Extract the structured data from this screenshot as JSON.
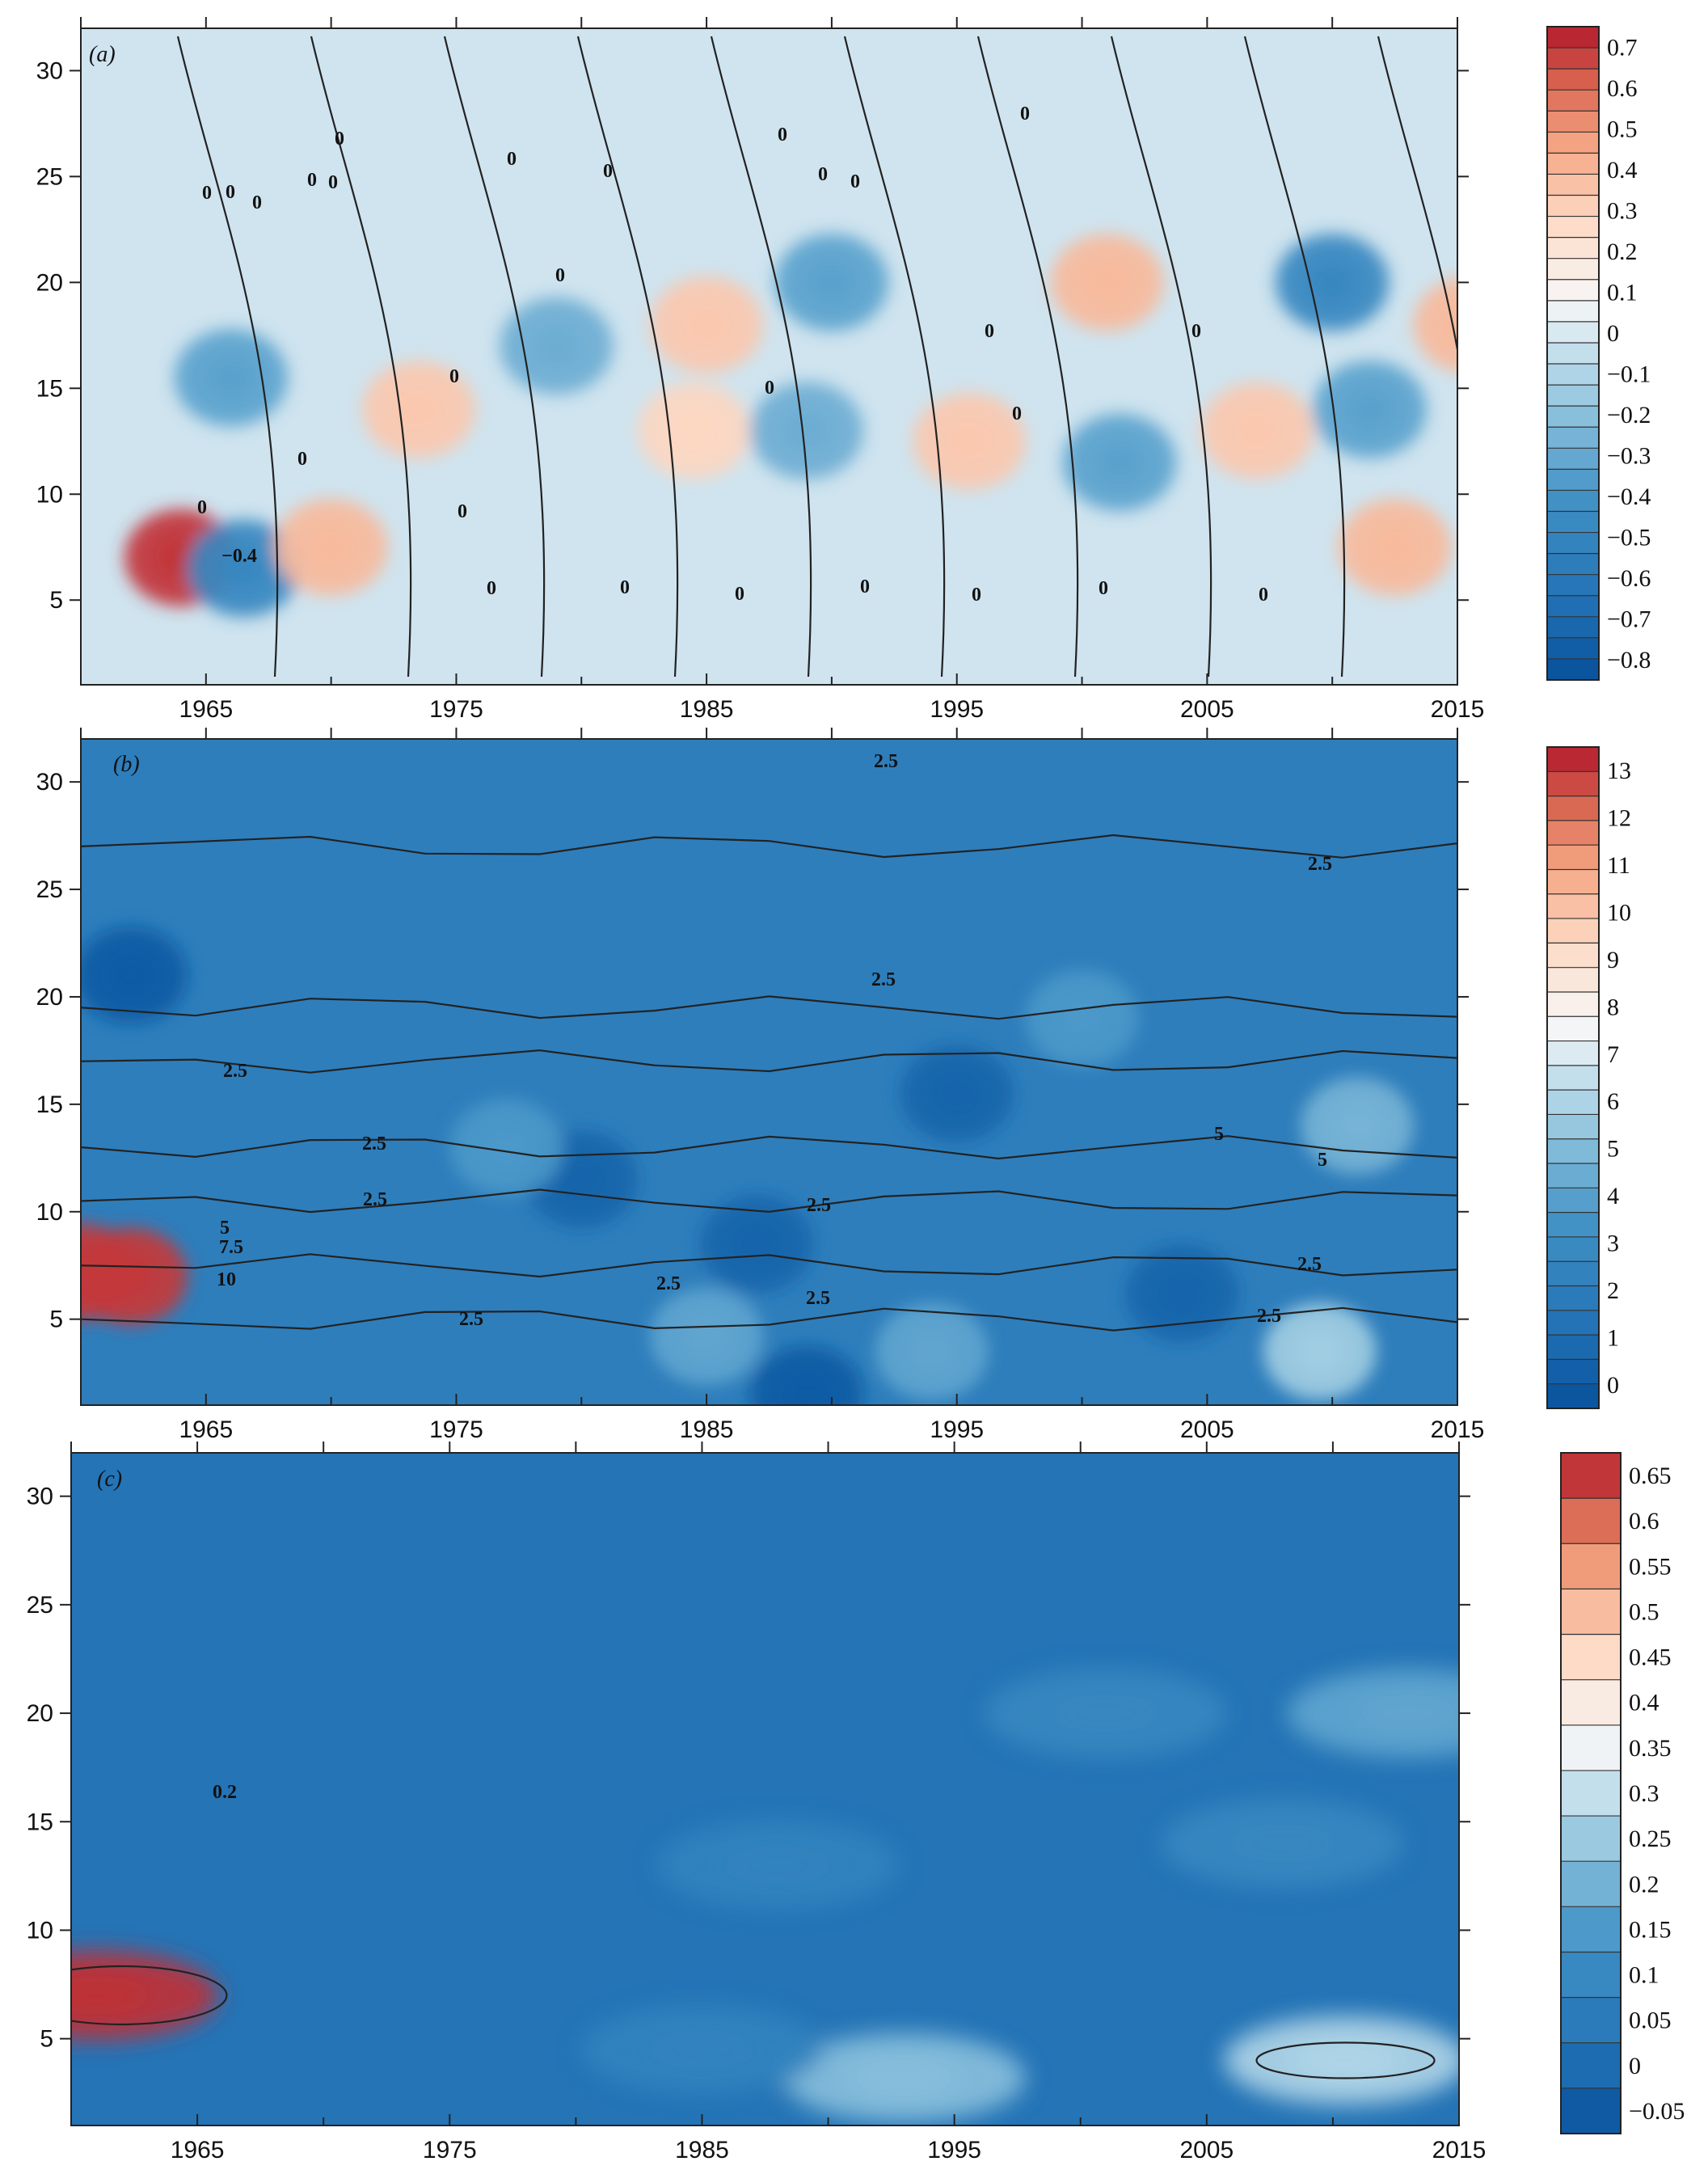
{
  "chart_data": [
    {
      "type": "heatmap",
      "panel_label": "(a)",
      "xlim": [
        1960,
        2015
      ],
      "ylim": [
        1,
        32
      ],
      "x_ticks": [
        "1965",
        "1975",
        "1985",
        "1995",
        "2005",
        "2015"
      ],
      "x_tick_values": [
        1965,
        1975,
        1985,
        1995,
        2005,
        2015
      ],
      "y_ticks": [
        "5",
        "10",
        "15",
        "20",
        "25",
        "30"
      ],
      "y_tick_values": [
        5,
        10,
        15,
        20,
        25,
        30
      ],
      "colorbar": {
        "labels": [
          "0.7",
          "0.6",
          "0.5",
          "0.4",
          "0.3",
          "0.2",
          "0.1",
          "0",
          "−0.1",
          "−0.2",
          "−0.3",
          "−0.4",
          "−0.5",
          "−0.6",
          "−0.7",
          "−0.8"
        ],
        "min": -0.8,
        "max": 0.75,
        "levels": 31
      },
      "contour_labels": [
        "0",
        "0",
        "0",
        "0",
        "0",
        "0",
        "0",
        "0",
        "0",
        "0",
        "0",
        "0",
        "0",
        "0",
        "0",
        "0",
        "0",
        "0",
        "0",
        "0",
        "0",
        "0",
        "0",
        "0",
        "0",
        "0",
        "0",
        "0",
        "−0.4"
      ],
      "features": [
        {
          "x": 1964,
          "y": 7,
          "value": 0.7
        },
        {
          "x": 1966.5,
          "y": 6.5,
          "value": -0.45
        },
        {
          "x": 1970,
          "y": 7.5,
          "value": 0.4
        },
        {
          "x": 1973.5,
          "y": 14,
          "value": 0.35
        },
        {
          "x": 1966,
          "y": 15.5,
          "value": -0.3
        },
        {
          "x": 1979,
          "y": 17,
          "value": -0.25
        },
        {
          "x": 1985,
          "y": 18,
          "value": 0.35
        },
        {
          "x": 1984.5,
          "y": 13,
          "value": 0.3
        },
        {
          "x": 1990,
          "y": 20,
          "value": -0.3
        },
        {
          "x": 1989,
          "y": 13,
          "value": -0.25
        },
        {
          "x": 1995.5,
          "y": 12.5,
          "value": 0.35
        },
        {
          "x": 2001,
          "y": 20,
          "value": 0.4
        },
        {
          "x": 2001.5,
          "y": 11.5,
          "value": -0.3
        },
        {
          "x": 2007,
          "y": 13,
          "value": 0.35
        },
        {
          "x": 2010,
          "y": 20,
          "value": -0.45
        },
        {
          "x": 2011.5,
          "y": 14,
          "value": -0.3
        },
        {
          "x": 2015.5,
          "y": 18,
          "value": 0.4
        },
        {
          "x": 2012.5,
          "y": 7.5,
          "value": 0.4
        }
      ]
    },
    {
      "type": "heatmap",
      "panel_label": "(b)",
      "xlim": [
        1960,
        2015
      ],
      "ylim": [
        1,
        32
      ],
      "x_ticks": [
        "1965",
        "1975",
        "1985",
        "1995",
        "2005",
        "2015"
      ],
      "x_tick_values": [
        1965,
        1975,
        1985,
        1995,
        2005,
        2015
      ],
      "y_ticks": [
        "5",
        "10",
        "15",
        "20",
        "25",
        "30"
      ],
      "y_tick_values": [
        5,
        10,
        15,
        20,
        25,
        30
      ],
      "colorbar": {
        "labels": [
          "13",
          "12",
          "11",
          "10",
          "9",
          "8",
          "7",
          "6",
          "5",
          "4",
          "3",
          "2",
          "1",
          "0"
        ],
        "min": 0,
        "max": 13.5,
        "levels": 27
      },
      "contour_labels": [
        "2.5",
        "2.5",
        "2.5",
        "2.5",
        "2.5",
        "2.5",
        "2.5",
        "2.5",
        "2.5",
        "2.5",
        "2.5",
        "2.5",
        "5",
        "5",
        "5",
        "7.5",
        "10"
      ],
      "features": [
        {
          "x": 1960,
          "y": 7.2,
          "value": 13
        },
        {
          "x": 1962,
          "y": 7,
          "value": 13
        },
        {
          "x": 2009.5,
          "y": 3.5,
          "value": 6
        },
        {
          "x": 1994,
          "y": 3.5,
          "value": 4.5
        },
        {
          "x": 1985,
          "y": 4.2,
          "value": 4.5
        },
        {
          "x": 2011,
          "y": 14,
          "value": 5
        },
        {
          "x": 1995,
          "y": 15.5,
          "value": 1
        },
        {
          "x": 1962,
          "y": 21,
          "value": 0.5
        },
        {
          "x": 1980,
          "y": 11.5,
          "value": 1
        },
        {
          "x": 1987,
          "y": 8.5,
          "value": 1
        },
        {
          "x": 2004,
          "y": 6.2,
          "value": 1
        },
        {
          "x": 1989,
          "y": 1.5,
          "value": 0.5
        },
        {
          "x": 1977,
          "y": 13,
          "value": 4
        },
        {
          "x": 2000,
          "y": 19,
          "value": 4
        }
      ]
    },
    {
      "type": "heatmap",
      "panel_label": "(c)",
      "xlim": [
        1960,
        2015
      ],
      "ylim": [
        1,
        32
      ],
      "x_ticks": [
        "1965",
        "1975",
        "1985",
        "1995",
        "2005",
        "2015"
      ],
      "x_tick_values": [
        1965,
        1975,
        1985,
        1995,
        2005,
        2015
      ],
      "y_ticks": [
        "5",
        "10",
        "15",
        "20",
        "25",
        "30"
      ],
      "y_tick_values": [
        5,
        10,
        15,
        20,
        25,
        30
      ],
      "colorbar": {
        "labels": [
          "0.65",
          "0.6",
          "0.55",
          "0.5",
          "0.45",
          "0.4",
          "0.35",
          "0.3",
          "0.25",
          "0.2",
          "0.15",
          "0.1",
          "0.05",
          "0",
          "−0.05"
        ],
        "min": -0.05,
        "max": 0.7,
        "levels": 15
      },
      "contour_labels": [
        "0.2"
      ],
      "features": [
        {
          "x": 1961,
          "y": 7,
          "value": 0.68
        },
        {
          "x": 2010.5,
          "y": 4,
          "value": 0.3
        },
        {
          "x": 1993,
          "y": 3.2,
          "value": 0.25
        },
        {
          "x": 2001,
          "y": 20,
          "value": 0.12
        },
        {
          "x": 2008,
          "y": 14,
          "value": 0.12
        },
        {
          "x": 1988,
          "y": 13,
          "value": 0.1
        },
        {
          "x": 1985,
          "y": 4.5,
          "value": 0.1
        },
        {
          "x": 2013,
          "y": 20,
          "value": 0.2
        }
      ]
    }
  ]
}
